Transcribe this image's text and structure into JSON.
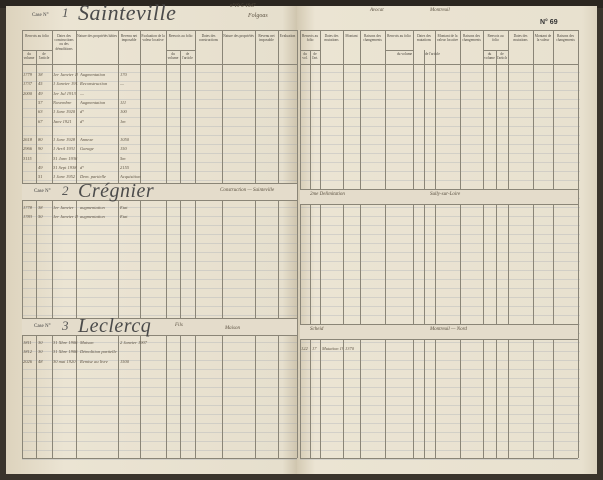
{
  "header": {
    "case_label": "Case N°",
    "folio": "N° 69",
    "top_notes_left": [
      "n°19-5-1947",
      "Folgoas"
    ],
    "top_notes_right": [
      "Avocat",
      "Montreuil",
      "N° 69"
    ]
  },
  "left_columns": [
    {
      "label": "Renvois au folio",
      "subs": [
        "du volume",
        "de l'article"
      ]
    },
    {
      "label": "Dates des constructions ou des démolitions"
    },
    {
      "label": "Nature des propriétés bâties"
    },
    {
      "label": "Revenu net imposable"
    },
    {
      "label": "Évaluation de la valeur locative"
    },
    {
      "label": "Renvois au folio",
      "subs": [
        "du volume",
        "de l'article"
      ]
    },
    {
      "label": "Dates des constructions"
    },
    {
      "label": "Nature des propriétés"
    },
    {
      "label": "Revenu net imposable"
    },
    {
      "label": "Évaluation"
    }
  ],
  "right_columns": [
    {
      "label": "Renvois au folio",
      "subs": [
        "du vol.",
        "de l'art."
      ]
    },
    {
      "label": "Dates des mutations"
    },
    {
      "label": "Montant"
    },
    {
      "label": "Raisons des changements"
    },
    {
      "label": "Renvois au folio",
      "subs": [
        "du volume",
        "de l'article"
      ]
    },
    {
      "label": "Dates des mutations"
    },
    {
      "label": "Montant de la valeur locative"
    },
    {
      "label": "Raisons des changements"
    },
    {
      "label": "Renvois au folio",
      "subs": [
        "du volume",
        "de l'article"
      ]
    },
    {
      "label": "Dates des mutations"
    },
    {
      "label": "Montant de la valeur"
    },
    {
      "label": "Raisons des changements"
    }
  ],
  "cases": [
    {
      "number": "1",
      "name": "Sainteville",
      "note": "",
      "right_note": "",
      "right_place": "",
      "rows": [
        [
          "1779",
          "38",
          "1er Janvier 1910",
          "Augmentation",
          "170"
        ],
        [
          "1737",
          "45",
          "1 Janvier 1912",
          "Reconstruction",
          "—"
        ],
        [
          "2000",
          "49",
          "1er Jul 1913",
          "—",
          ""
        ],
        [
          "",
          "57",
          "Novembre",
          "Augmentation",
          "111"
        ],
        [
          "",
          "63",
          "1 Janv 1920",
          "d°",
          "100"
        ],
        [
          "",
          "67",
          "Janv 1921",
          "d°",
          "1m"
        ],
        [
          "",
          "",
          "",
          "",
          ""
        ],
        [
          "2618",
          "80",
          "1 Janv 1928",
          "Annexe",
          "1050"
        ],
        [
          "2966",
          "90",
          "1 Avril 1931",
          "Garage",
          "150"
        ],
        [
          "3115",
          "",
          "31 Janv 1936",
          "",
          "5m"
        ],
        [
          "",
          "49",
          "31 Sept 1938",
          "d°",
          "2155"
        ],
        [
          "",
          "51",
          "1 Janv 1952",
          "Dem. partielle",
          "Acquisition"
        ]
      ]
    },
    {
      "number": "2",
      "name": "Crégnier",
      "note": "Construction — Sainteville",
      "right_note": "2me Delimitation",
      "right_place": "Sully-sur-Loire",
      "rows": [
        [
          "1778",
          "38",
          "1er Janvier",
          "augmentation",
          "Etat"
        ],
        [
          "1783",
          "50",
          "1er Janvier 1918",
          "augmentation",
          "Etat"
        ]
      ]
    },
    {
      "number": "3",
      "name": "Leclercq",
      "note": "Fils",
      "note2": "Maison",
      "right_note": "Scheid",
      "right_place": "Montreuil — Nord",
      "rows": [
        [
          "1811",
          "30",
          "31 Xbre 1906",
          "Maison",
          "2 Janvier 1907"
        ],
        [
          "1812",
          "30",
          "31 Xbre 1906",
          "Démolition partielle",
          ""
        ],
        [
          "2026",
          "48",
          "30 mai 1920",
          "Remise au livre",
          "1500"
        ]
      ],
      "right_rows": [
        [
          "122",
          "17",
          "Mutation 1928",
          "1370"
        ]
      ]
    }
  ]
}
